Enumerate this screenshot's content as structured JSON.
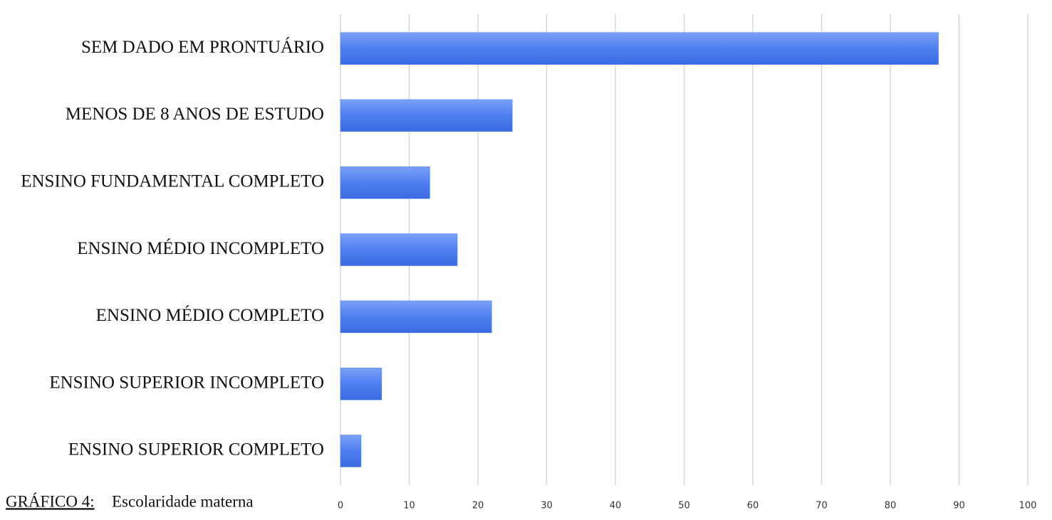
{
  "chart_data": {
    "type": "barh",
    "figure_label": "GRÁFICO 4:",
    "title": "Escolaridade materna",
    "categories": [
      "SEM DADO EM PRONTUÁRIO",
      "MENOS DE 8 ANOS DE ESTUDO",
      "ENSINO FUNDAMENTAL COMPLETO",
      "ENSINO MÉDIO INCOMPLETO",
      "ENSINO MÉDIO COMPLETO",
      "ENSINO SUPERIOR INCOMPLETO",
      "ENSINO SUPERIOR COMPLETO"
    ],
    "values": [
      87,
      25,
      13,
      17,
      22,
      6,
      3
    ],
    "color": "#4f7ff0",
    "xlim": [
      0,
      100
    ],
    "xticks": [
      0,
      10,
      20,
      30,
      40,
      50,
      60,
      70,
      80,
      90,
      100
    ],
    "grid": true
  }
}
